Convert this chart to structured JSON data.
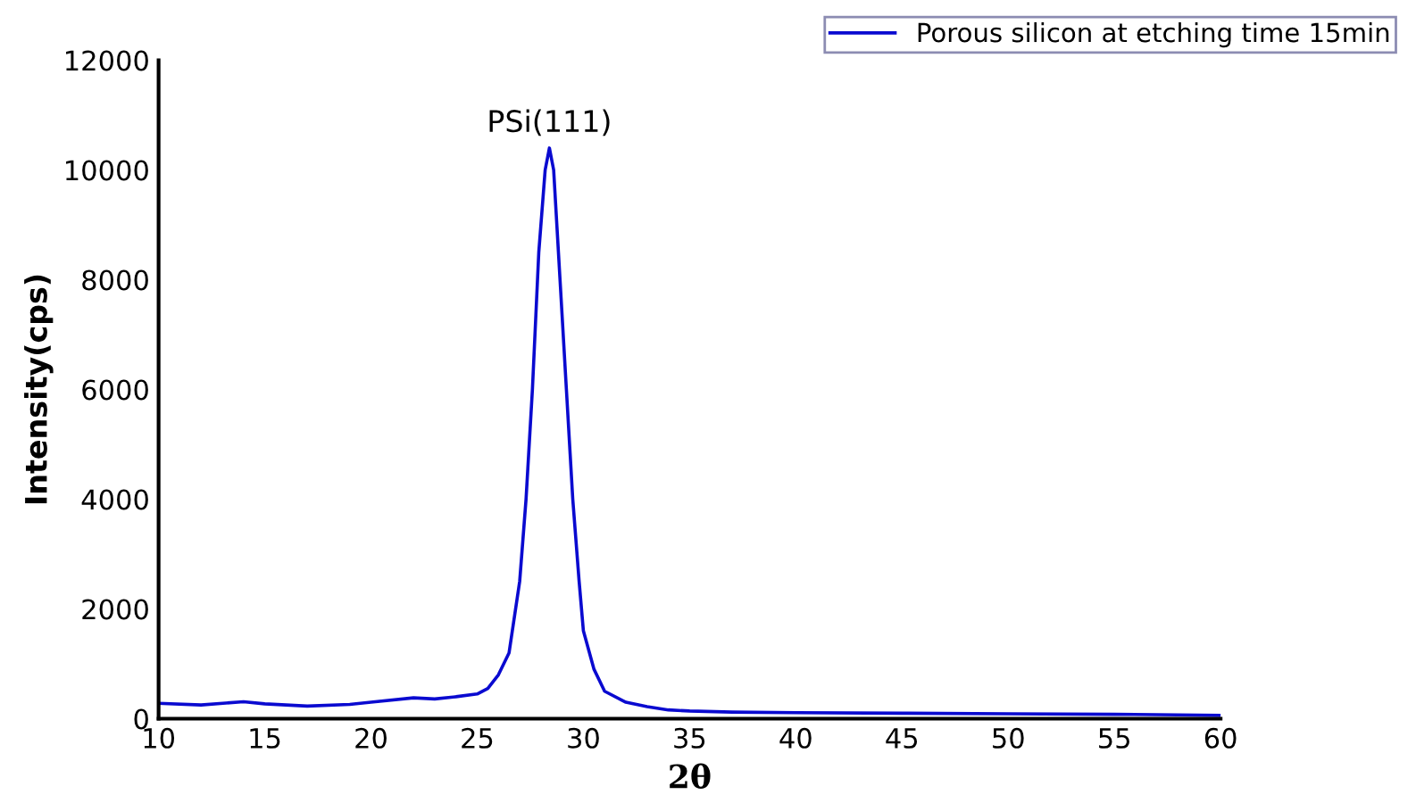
{
  "chart_data": {
    "type": "line",
    "xlabel": "2θ",
    "ylabel": "Intensity(cps)",
    "xlim": [
      10,
      60
    ],
    "xticks": [
      10,
      15,
      20,
      25,
      30,
      35,
      40,
      45,
      50,
      55,
      60
    ],
    "ylim": [
      0,
      12000
    ],
    "yticks": [
      0,
      2000,
      4000,
      6000,
      8000,
      10000,
      12000
    ],
    "grid": false,
    "legend": "top right",
    "marker": "none",
    "line_style": "solid",
    "annotations": [
      {
        "text": "PSi(111)",
        "x": 28.4,
        "y": 10400
      }
    ],
    "series": [
      {
        "name": "Porous silicon at etching time 15min",
        "color": "#0a0ad0",
        "x": [
          10,
          12,
          14,
          15,
          17,
          19,
          20,
          22,
          23,
          24,
          25,
          25.5,
          26,
          26.5,
          27,
          27.3,
          27.6,
          27.9,
          28.2,
          28.4,
          28.6,
          28.9,
          29.2,
          29.5,
          29.8,
          30,
          30.5,
          31,
          32,
          33,
          34,
          35,
          37,
          40,
          45,
          50,
          55,
          58,
          60
        ],
        "values": [
          280,
          250,
          310,
          270,
          230,
          260,
          300,
          380,
          360,
          400,
          450,
          550,
          800,
          1200,
          2500,
          4000,
          6000,
          8500,
          10000,
          10400,
          10000,
          8000,
          6000,
          4000,
          2500,
          1600,
          900,
          500,
          300,
          220,
          160,
          140,
          120,
          110,
          100,
          90,
          80,
          70,
          60
        ]
      }
    ]
  }
}
